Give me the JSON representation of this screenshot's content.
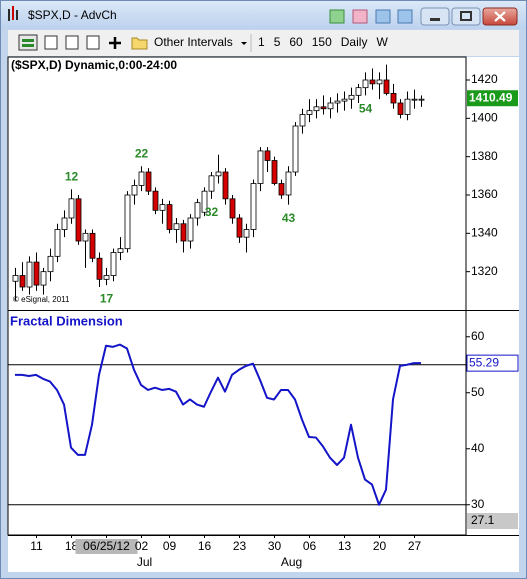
{
  "window": {
    "title": "$SPX,D - AdvCh"
  },
  "toolbar": {
    "intervals_menu": "Other Intervals",
    "intervals": [
      "1",
      "5",
      "60",
      "150",
      "Daily",
      "W"
    ]
  },
  "chart_data": [
    {
      "type": "candlestick",
      "title": "($SPX,D) Dynamic,0:00-24:00",
      "watermark": "© eSignal, 2011",
      "categories": [
        null,
        null,
        null,
        "11",
        null,
        null,
        null,
        null,
        "18",
        null,
        null,
        null,
        null,
        "06/25/12",
        null,
        null,
        null,
        null,
        "02",
        null,
        null,
        null,
        "09",
        null,
        null,
        null,
        null,
        "16",
        null,
        null,
        null,
        null,
        "23",
        null,
        null,
        null,
        null,
        "30",
        null,
        null,
        null,
        null,
        "06",
        null,
        null,
        null,
        null,
        "13",
        null,
        null,
        null,
        null,
        "20",
        null,
        null,
        null,
        null,
        "27",
        null
      ],
      "months": [
        null,
        null,
        null,
        null,
        null,
        null,
        null,
        null,
        null,
        null,
        null,
        null,
        null,
        null,
        null,
        null,
        null,
        null,
        "Jul",
        null,
        null,
        null,
        null,
        null,
        null,
        null,
        null,
        null,
        null,
        null,
        null,
        null,
        null,
        null,
        null,
        null,
        null,
        null,
        null,
        "Aug",
        null,
        null,
        null,
        null,
        null,
        null,
        null,
        null,
        null,
        null,
        null,
        null,
        null,
        null,
        null,
        null,
        null,
        null,
        null
      ],
      "open": [
        1315,
        1318,
        1312,
        1325,
        1313,
        1320,
        1328,
        1342,
        1348,
        1358,
        1336,
        1340,
        1327,
        1316,
        1318,
        1330,
        1332,
        1360,
        1365,
        1372,
        1362,
        1352,
        1355,
        1342,
        1345,
        1336,
        1348,
        1351,
        1362,
        1370,
        1372,
        1358,
        1348,
        1338,
        1342,
        1366,
        1383,
        1378,
        1366,
        1360,
        1372,
        1396,
        1402,
        1404,
        1406,
        1405,
        1408,
        1409,
        1410,
        1412,
        1416,
        1420,
        1418,
        1420,
        1413,
        1408,
        1402,
        1410,
        1410
      ],
      "high": [
        1322,
        1325,
        1328,
        1330,
        1322,
        1332,
        1345,
        1352,
        1363,
        1360,
        1342,
        1342,
        1330,
        1322,
        1332,
        1338,
        1362,
        1368,
        1375,
        1374,
        1364,
        1358,
        1357,
        1348,
        1347,
        1350,
        1358,
        1364,
        1372,
        1381,
        1374,
        1360,
        1350,
        1345,
        1368,
        1385,
        1385,
        1380,
        1368,
        1375,
        1398,
        1405,
        1410,
        1410,
        1412,
        1411,
        1413,
        1414,
        1416,
        1418,
        1424,
        1426,
        1424,
        1428,
        1418,
        1410,
        1414,
        1415,
        1412
      ],
      "low": [
        1305,
        1310,
        1308,
        1310,
        1308,
        1315,
        1325,
        1338,
        1345,
        1334,
        1322,
        1325,
        1312,
        1313,
        1315,
        1326,
        1330,
        1355,
        1362,
        1360,
        1350,
        1345,
        1340,
        1335,
        1330,
        1332,
        1344,
        1349,
        1358,
        1366,
        1355,
        1345,
        1335,
        1330,
        1338,
        1362,
        1372,
        1365,
        1358,
        1355,
        1370,
        1392,
        1398,
        1400,
        1402,
        1400,
        1403,
        1404,
        1405,
        1408,
        1412,
        1415,
        1410,
        1412,
        1405,
        1400,
        1399,
        1405,
        1406
      ],
      "close": [
        1318,
        1312,
        1325,
        1313,
        1320,
        1328,
        1342,
        1348,
        1358,
        1336,
        1340,
        1327,
        1316,
        1318,
        1330,
        1332,
        1360,
        1365,
        1372,
        1362,
        1352,
        1355,
        1342,
        1345,
        1336,
        1348,
        1356,
        1362,
        1370,
        1372,
        1358,
        1348,
        1338,
        1342,
        1366,
        1383,
        1378,
        1366,
        1360,
        1372,
        1396,
        1402,
        1404,
        1406,
        1405,
        1408,
        1409,
        1410,
        1412,
        1416,
        1420,
        1418,
        1420,
        1413,
        1408,
        1402,
        1410,
        1410,
        1410
      ],
      "annotations": [
        null,
        null,
        null,
        null,
        null,
        null,
        null,
        null,
        "12",
        null,
        null,
        null,
        null,
        "17",
        null,
        null,
        null,
        null,
        "22",
        null,
        null,
        null,
        null,
        null,
        null,
        null,
        null,
        null,
        "32",
        null,
        null,
        null,
        null,
        null,
        null,
        null,
        null,
        null,
        null,
        "43",
        null,
        null,
        null,
        null,
        null,
        null,
        null,
        null,
        null,
        null,
        "54",
        null,
        null,
        null,
        null,
        null,
        null,
        null,
        null
      ],
      "up_color": "#ffffff",
      "down_color": "#d40000",
      "annotation_color": "#2a8a2a",
      "last_value": 1410.49,
      "last_value_color": "#1a9a1a",
      "ylim": [
        1300,
        1432
      ],
      "yticks": [
        1320,
        1340,
        1360,
        1380,
        1400,
        1420
      ]
    },
    {
      "type": "line",
      "title": "Fractal Dimension",
      "color": "#1414c8",
      "values": [
        53.2,
        53.2,
        53.0,
        53.2,
        52.5,
        52.0,
        50.5,
        47.9,
        40.2,
        38.9,
        38.9,
        44.3,
        53.2,
        58.4,
        58.2,
        58.6,
        57.9,
        54.1,
        51.4,
        50.5,
        50.9,
        50.5,
        50.7,
        50.2,
        47.9,
        48.8,
        47.9,
        47.5,
        50.2,
        52.7,
        50.2,
        53.2,
        54.1,
        54.8,
        55.2,
        52.3,
        49.1,
        48.8,
        50.5,
        50.5,
        48.8,
        45.2,
        42.1,
        42.0,
        40.4,
        38.4,
        37.1,
        38.4,
        44.3,
        38.4,
        34.5,
        33.6,
        30.0,
        32.7,
        48.8,
        54.8,
        55.0,
        55.3,
        55.29
      ],
      "hlines": [
        55,
        30
      ],
      "last_value": 55.29,
      "scale_floor": 27.1,
      "ylim": [
        24.6,
        64.6
      ],
      "yticks": [
        30,
        40,
        50,
        60
      ]
    }
  ]
}
